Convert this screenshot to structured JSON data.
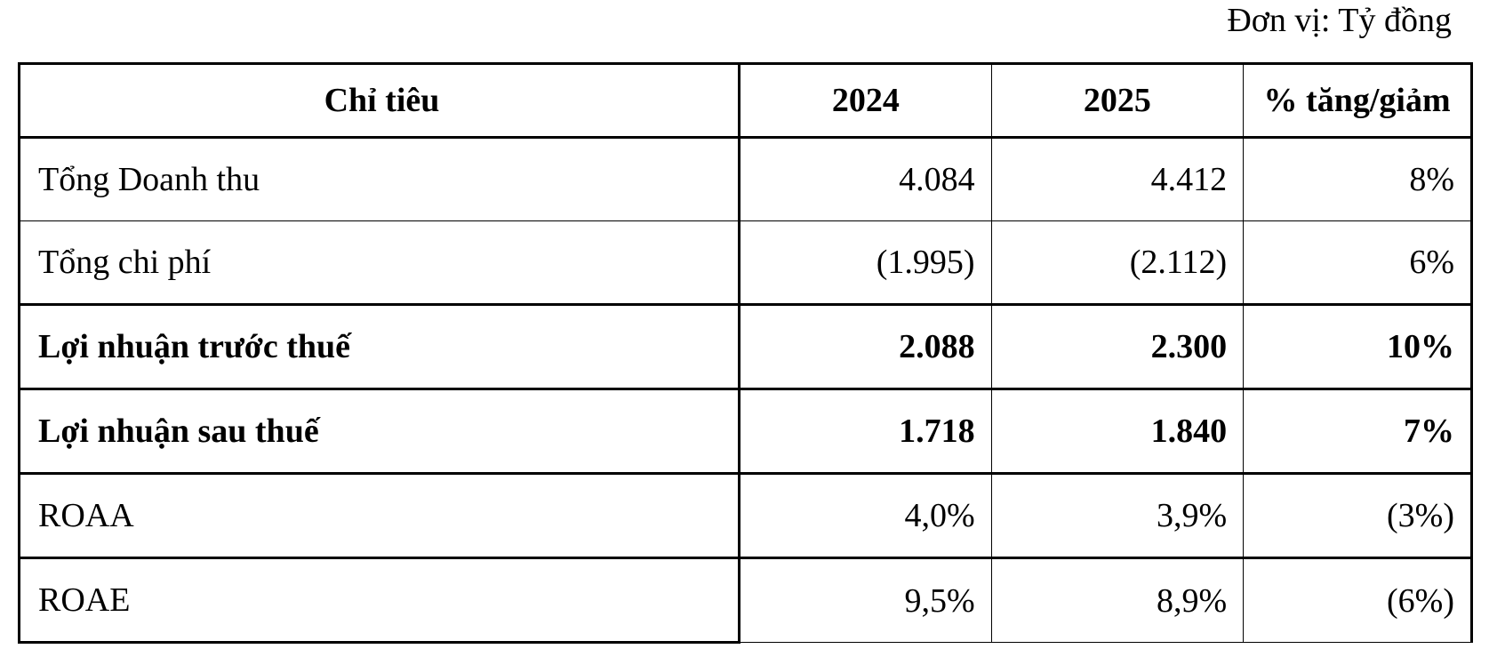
{
  "unit_label": "Đơn vị: Tỷ đồng",
  "table": {
    "headers": [
      "Chỉ tiêu",
      "2024",
      "2025",
      "% tăng/giảm"
    ],
    "rows": [
      {
        "label": "Tổng Doanh thu",
        "y2024": "4.084",
        "y2025": "4.412",
        "change": "8%",
        "bold": false
      },
      {
        "label": "Tổng chi phí",
        "y2024": "(1.995)",
        "y2025": "(2.112)",
        "change": "6%",
        "bold": false
      },
      {
        "label": "Lợi nhuận trước thuế",
        "y2024": "2.088",
        "y2025": "2.300",
        "change": "10%",
        "bold": true
      },
      {
        "label": "Lợi nhuận sau thuế",
        "y2024": "1.718",
        "y2025": "1.840",
        "change": "7%",
        "bold": true
      },
      {
        "label": "ROAA",
        "y2024": "4,0%",
        "y2025": "3,9%",
        "change": "(3%)",
        "bold": false
      },
      {
        "label": "ROAE",
        "y2024": "9,5%",
        "y2025": "8,9%",
        "change": "(6%)",
        "bold": false
      }
    ]
  }
}
